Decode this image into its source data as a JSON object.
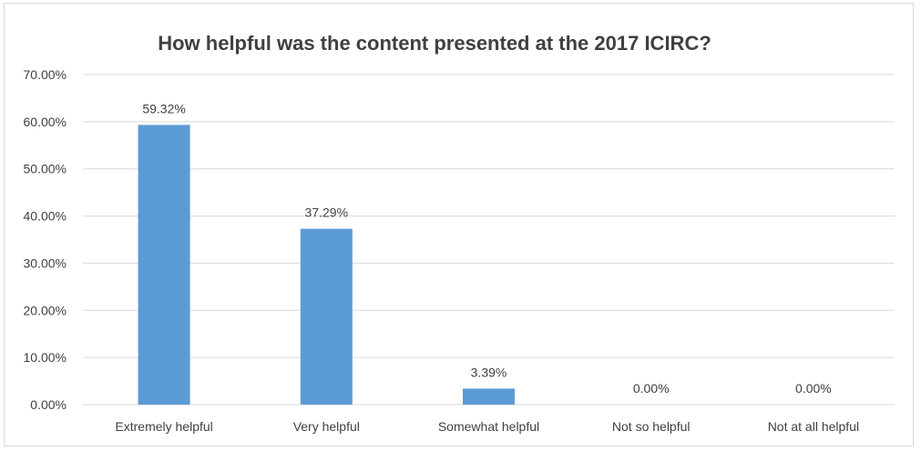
{
  "chart_data": {
    "type": "bar",
    "title": "How helpful was the content presented at the 2017 ICIRC?",
    "xlabel": "",
    "ylabel": "",
    "categories": [
      "Extremely helpful",
      "Very helpful",
      "Somewhat helpful",
      "Not so helpful",
      "Not at all helpful"
    ],
    "values": [
      59.32,
      37.29,
      3.39,
      0.0,
      0.0
    ],
    "value_labels": [
      "59.32%",
      "37.29%",
      "3.39%",
      "0.00%",
      "0.00%"
    ],
    "ylim": [
      0,
      70
    ],
    "y_ticks": [
      0,
      10,
      20,
      30,
      40,
      50,
      60,
      70
    ],
    "y_tick_labels": [
      "0.00%",
      "10.00%",
      "20.00%",
      "30.00%",
      "40.00%",
      "50.00%",
      "60.00%",
      "70.00%"
    ],
    "grid": true,
    "legend": "none",
    "colors": {
      "bar": "#5b9bd5",
      "grid": "#d9d9d9",
      "text": "#404040"
    }
  }
}
